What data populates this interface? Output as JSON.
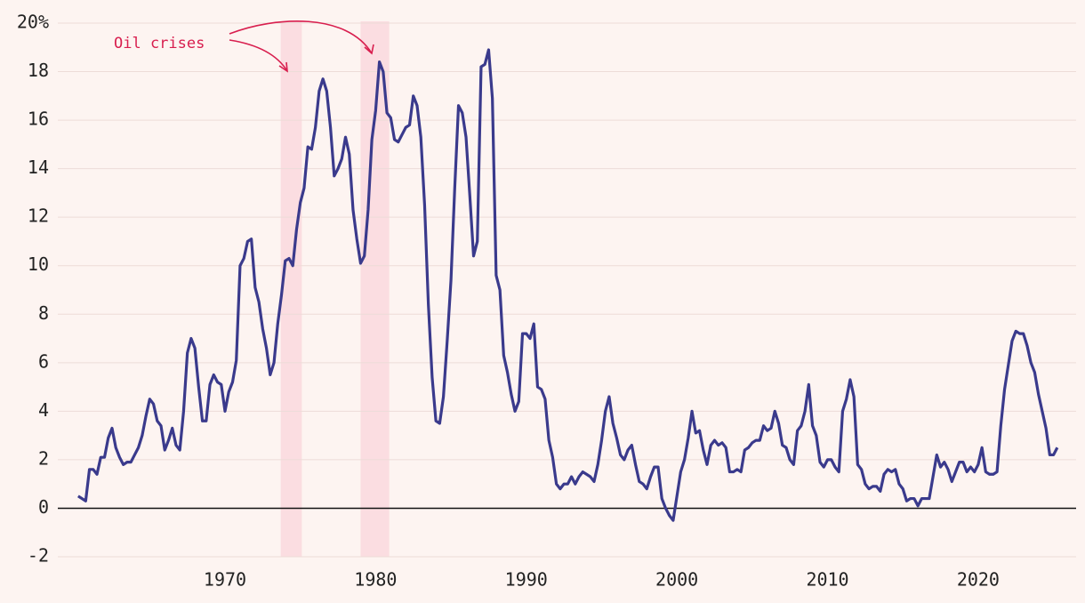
{
  "chart_data": {
    "type": "line",
    "annotation": "Oil crises",
    "shaded_regions": [
      [
        1973.7,
        1975.1
      ],
      [
        1979.0,
        1980.9
      ]
    ],
    "shade_color": "#fbdde1",
    "annotation_color": "#d81e4e",
    "grid": true,
    "xlim": [
      1958.9,
      2026.5
    ],
    "xticks": [
      1970,
      1980,
      1990,
      2000,
      2010,
      2020
    ],
    "ylim": [
      -2,
      20
    ],
    "yticks": [
      -2,
      0,
      2,
      4,
      6,
      8,
      10,
      12,
      14,
      16,
      18,
      {
        "value": 20,
        "label": "20%"
      }
    ],
    "x": [
      1960.25,
      1960.75,
      1961.0,
      1961.25,
      1961.5,
      1961.75,
      1962.0,
      1962.25,
      1962.5,
      1962.75,
      1963.0,
      1963.25,
      1963.5,
      1963.75,
      1964.0,
      1964.25,
      1964.5,
      1964.75,
      1965.0,
      1965.25,
      1965.5,
      1965.75,
      1966.0,
      1966.25,
      1966.5,
      1966.75,
      1967.0,
      1967.25,
      1967.5,
      1967.75,
      1968.0,
      1968.25,
      1968.5,
      1968.75,
      1969.0,
      1969.25,
      1969.5,
      1969.75,
      1970.0,
      1970.25,
      1970.5,
      1970.75,
      1971.0,
      1971.25,
      1971.5,
      1971.75,
      1972.0,
      1972.25,
      1972.5,
      1972.75,
      1973.0,
      1973.25,
      1973.5,
      1973.75,
      1974.0,
      1974.25,
      1974.5,
      1974.75,
      1975.0,
      1975.25,
      1975.5,
      1975.75,
      1976.0,
      1976.25,
      1976.5,
      1976.75,
      1977.0,
      1977.25,
      1977.5,
      1977.75,
      1978.0,
      1978.25,
      1978.5,
      1978.75,
      1979.0,
      1979.25,
      1979.5,
      1979.75,
      1980.0,
      1980.25,
      1980.5,
      1980.75,
      1981.0,
      1981.25,
      1981.5,
      1981.75,
      1982.0,
      1982.25,
      1982.5,
      1982.75,
      1983.0,
      1983.25,
      1983.5,
      1983.75,
      1984.0,
      1984.25,
      1984.5,
      1984.75,
      1985.0,
      1985.25,
      1985.5,
      1985.75,
      1986.0,
      1986.25,
      1986.5,
      1986.75,
      1987.0,
      1987.25,
      1987.5,
      1987.75,
      1988.0,
      1988.25,
      1988.5,
      1988.75,
      1989.0,
      1989.25,
      1989.5,
      1989.75,
      1990.0,
      1990.25,
      1990.5,
      1990.75,
      1991.0,
      1991.25,
      1991.5,
      1991.75,
      1992.0,
      1992.25,
      1992.5,
      1992.75,
      1993.0,
      1993.25,
      1993.5,
      1993.75,
      1994.0,
      1994.25,
      1994.5,
      1994.75,
      1995.0,
      1995.25,
      1995.5,
      1995.75,
      1996.0,
      1996.25,
      1996.5,
      1996.75,
      1997.0,
      1997.25,
      1997.5,
      1997.75,
      1998.0,
      1998.25,
      1998.5,
      1998.75,
      1999.0,
      1999.25,
      1999.5,
      1999.75,
      2000.0,
      2000.25,
      2000.5,
      2000.75,
      2001.0,
      2001.25,
      2001.5,
      2001.75,
      2002.0,
      2002.25,
      2002.5,
      2002.75,
      2003.0,
      2003.25,
      2003.5,
      2003.75,
      2004.0,
      2004.25,
      2004.5,
      2004.75,
      2005.0,
      2005.25,
      2005.5,
      2005.75,
      2006.0,
      2006.25,
      2006.5,
      2006.75,
      2007.0,
      2007.25,
      2007.5,
      2007.75,
      2008.0,
      2008.25,
      2008.5,
      2008.75,
      2009.0,
      2009.25,
      2009.5,
      2009.75,
      2010.0,
      2010.25,
      2010.5,
      2010.75,
      2011.0,
      2011.25,
      2011.5,
      2011.75,
      2012.0,
      2012.25,
      2012.5,
      2012.75,
      2013.0,
      2013.25,
      2013.5,
      2013.75,
      2014.0,
      2014.25,
      2014.5,
      2014.75,
      2015.0,
      2015.25,
      2015.5,
      2015.75,
      2016.0,
      2016.25,
      2016.5,
      2016.75,
      2017.0,
      2017.25,
      2017.5,
      2017.75,
      2018.0,
      2018.25,
      2018.5,
      2018.75,
      2019.0,
      2019.25,
      2019.5,
      2019.75,
      2020.0,
      2020.25,
      2020.5,
      2020.75,
      2021.0,
      2021.25,
      2021.5,
      2021.75,
      2022.0,
      2022.25,
      2022.5,
      2022.75,
      2023.0,
      2023.25,
      2023.5,
      2023.75,
      2024.0,
      2024.25,
      2024.5,
      2024.75,
      2025.0,
      2025.25
    ],
    "series": [
      {
        "color": "#3a3a8c",
        "values": [
          0.5,
          0.3,
          1.6,
          1.6,
          1.4,
          2.1,
          2.1,
          2.9,
          3.3,
          2.5,
          2.1,
          1.8,
          1.9,
          1.9,
          2.2,
          2.5,
          3.0,
          3.8,
          4.5,
          4.3,
          3.6,
          3.4,
          2.4,
          2.8,
          3.3,
          2.6,
          2.4,
          4.0,
          6.4,
          7.0,
          6.6,
          5.0,
          3.6,
          3.6,
          5.1,
          5.5,
          5.2,
          5.1,
          4.0,
          4.8,
          5.2,
          6.1,
          10.0,
          10.3,
          11.0,
          11.1,
          9.1,
          8.5,
          7.4,
          6.6,
          5.5,
          6.0,
          7.6,
          8.8,
          10.2,
          10.3,
          10.0,
          11.5,
          12.6,
          13.2,
          14.9,
          14.8,
          15.7,
          17.2,
          17.7,
          17.2,
          15.7,
          13.7,
          14.0,
          14.4,
          15.3,
          14.6,
          12.3,
          11.1,
          10.1,
          10.4,
          12.3,
          15.2,
          16.4,
          18.4,
          18.0,
          16.3,
          16.1,
          15.2,
          15.1,
          15.4,
          15.7,
          15.8,
          17.0,
          16.6,
          15.3,
          12.5,
          8.4,
          5.4,
          3.6,
          3.5,
          4.6,
          6.9,
          9.4,
          13.2,
          16.6,
          16.3,
          15.3,
          12.9,
          10.4,
          11.0,
          18.2,
          18.3,
          18.9,
          16.9,
          9.6,
          9.0,
          6.3,
          5.6,
          4.7,
          4.0,
          4.4,
          7.2,
          7.2,
          7.0,
          7.6,
          5.0,
          4.9,
          4.5,
          2.8,
          2.1,
          1.0,
          0.8,
          1.0,
          1.0,
          1.3,
          1.0,
          1.3,
          1.5,
          1.4,
          1.3,
          1.1,
          1.8,
          2.8,
          4.0,
          4.6,
          3.5,
          2.9,
          2.2,
          2.0,
          2.4,
          2.6,
          1.8,
          1.1,
          1.0,
          0.8,
          1.3,
          1.7,
          1.7,
          0.4,
          0.0,
          -0.3,
          -0.5,
          0.5,
          1.5,
          2.0,
          2.9,
          4.0,
          3.1,
          3.2,
          2.4,
          1.8,
          2.6,
          2.8,
          2.6,
          2.7,
          2.5,
          1.5,
          1.5,
          1.6,
          1.5,
          2.4,
          2.5,
          2.7,
          2.8,
          2.8,
          3.4,
          3.2,
          3.3,
          4.0,
          3.5,
          2.6,
          2.5,
          2.0,
          1.8,
          3.2,
          3.4,
          4.0,
          5.1,
          3.4,
          3.0,
          1.9,
          1.7,
          2.0,
          2.0,
          1.7,
          1.5,
          4.0,
          4.5,
          5.3,
          4.6,
          1.8,
          1.6,
          1.0,
          0.8,
          0.9,
          0.9,
          0.7,
          1.4,
          1.6,
          1.5,
          1.6,
          1.0,
          0.8,
          0.3,
          0.4,
          0.4,
          0.1,
          0.4,
          0.4,
          0.4,
          1.3,
          2.2,
          1.7,
          1.9,
          1.6,
          1.1,
          1.5,
          1.9,
          1.9,
          1.5,
          1.7,
          1.5,
          1.8,
          2.5,
          1.5,
          1.4,
          1.4,
          1.5,
          3.4,
          4.9,
          5.9,
          6.9,
          7.3,
          7.2,
          7.2,
          6.7,
          6.0,
          5.6,
          4.7,
          4.0,
          3.3,
          2.2,
          2.2,
          2.5
        ]
      }
    ]
  }
}
